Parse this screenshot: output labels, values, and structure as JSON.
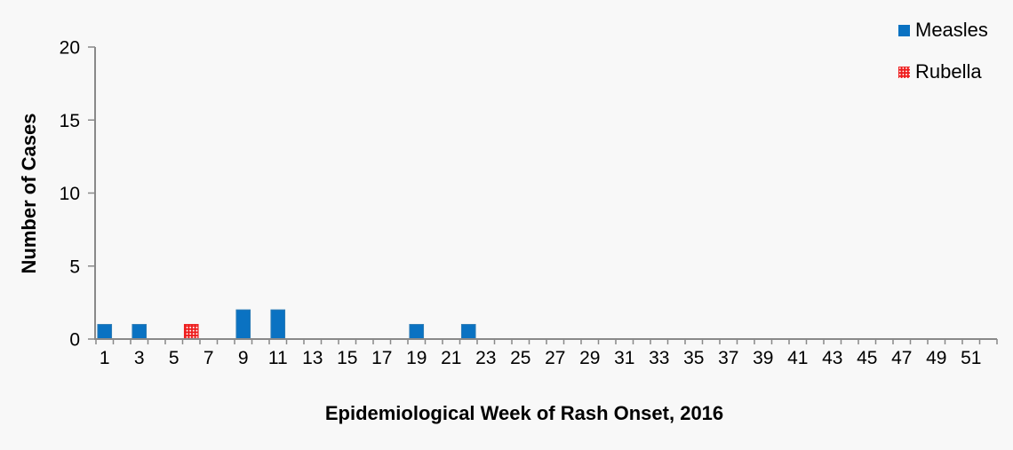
{
  "figure": {
    "background_color": "#F8F8F8",
    "axis_color": "#898989",
    "text_color": "#000000"
  },
  "chart_data": {
    "type": "bar",
    "title": "",
    "xlabel": "Epidemiological Week of Rash Onset, 2016",
    "ylabel": "Number of Cases",
    "x_axis": {
      "min_week": 1,
      "max_week": 52,
      "tick_labels": [
        "1",
        "3",
        "5",
        "7",
        "9",
        "11",
        "13",
        "15",
        "17",
        "19",
        "21",
        "23",
        "25",
        "27",
        "29",
        "31",
        "33",
        "35",
        "37",
        "39",
        "41",
        "43",
        "45",
        "47",
        "49",
        "51"
      ]
    },
    "ylim": [
      0,
      20
    ],
    "y_ticks": [
      0,
      5,
      10,
      15,
      20
    ],
    "grid": false,
    "legend_position": "top-right",
    "series": [
      {
        "name": "Measles",
        "color": "#0A72C2",
        "border_color": "#2B7BB5",
        "fill_pattern": "solid",
        "points": [
          {
            "week": 1,
            "cases": 1
          },
          {
            "week": 3,
            "cases": 1
          },
          {
            "week": 9,
            "cases": 2
          },
          {
            "week": 11,
            "cases": 2
          },
          {
            "week": 19,
            "cases": 1
          },
          {
            "week": 22,
            "cases": 1
          }
        ]
      },
      {
        "name": "Rubella",
        "color": "#EE1C1C",
        "border_color": "#EE1C1C",
        "fill_pattern": "white-dots",
        "pattern_dot_color": "#FFFFFF",
        "points": [
          {
            "week": 6,
            "cases": 1
          }
        ]
      }
    ]
  }
}
